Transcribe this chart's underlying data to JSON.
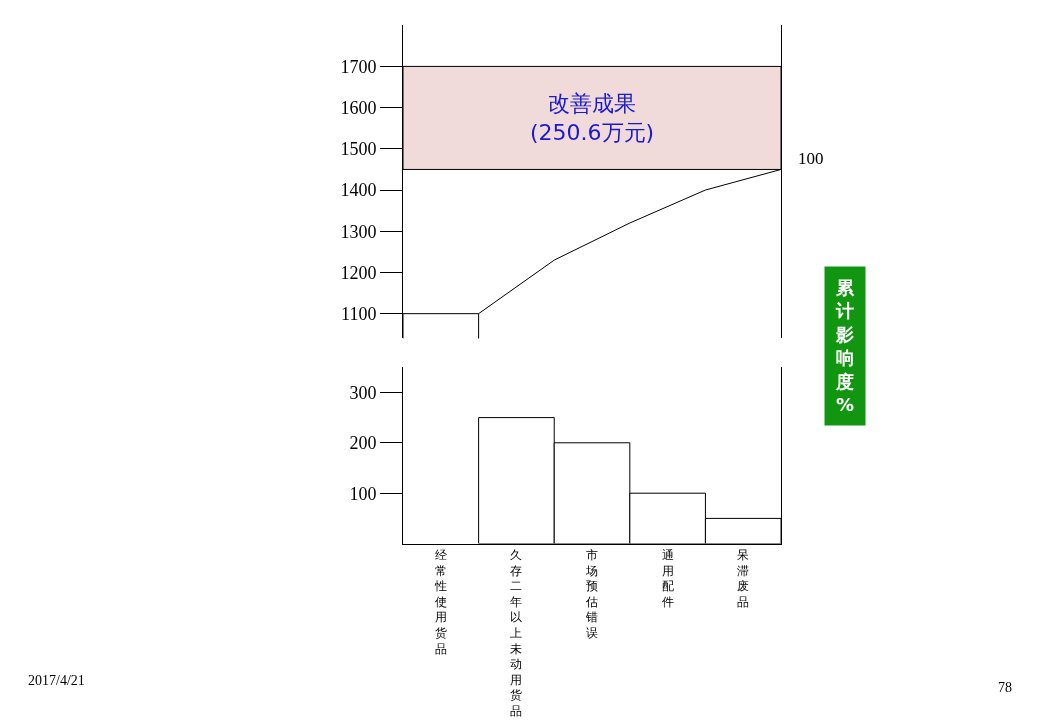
{
  "chart_data": [
    {
      "type": "line",
      "categories": [
        null,
        null,
        null,
        null,
        null
      ],
      "ylim": [
        1040,
        1800
      ],
      "yticks": [
        1100,
        1200,
        1300,
        1400,
        1500,
        1600,
        1700
      ],
      "tick_labels": "y",
      "grid": false,
      "series": [
        {
          "type": "bar",
          "values": [
            1100,
            null,
            null,
            null,
            null
          ],
          "color": "#ffffff"
        },
        {
          "type": "line",
          "values": [
            1100,
            1230,
            1320,
            1400,
            1450
          ],
          "color": "#000000"
        }
      ],
      "bands": [
        {
          "axis": "y",
          "from": 1450,
          "to": 1700,
          "label": "改善成果\n(250.6万元)",
          "color": "#f0dada"
        }
      ],
      "annotations": [
        "100",
        "累计影响度%",
        "2017/4/21",
        "78"
      ]
    },
    {
      "type": "bar",
      "categories": [
        "经常性使用货品",
        "久存二年以上未动用货品",
        "市场预估错误",
        "通用配件",
        "呆滞废品"
      ],
      "values": [
        null,
        250,
        200,
        100,
        50
      ],
      "color": "#ffffff",
      "ylim": [
        0,
        350
      ],
      "yticks": [
        100,
        200,
        300
      ],
      "grid": false
    }
  ]
}
